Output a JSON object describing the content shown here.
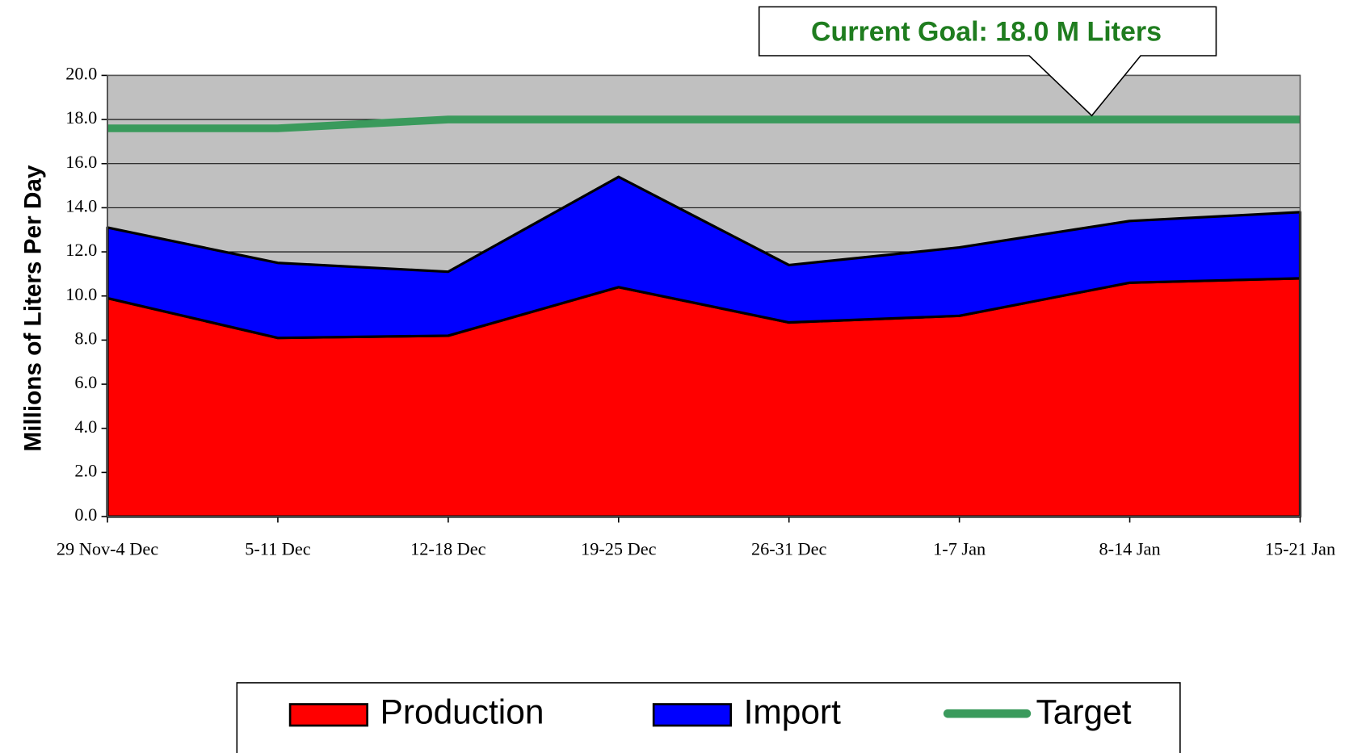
{
  "chart_data": {
    "type": "area",
    "stacked": true,
    "y_label": "Millions of Liters Per Day",
    "annotation": "Current Goal:  18.0 M Liters",
    "categories": [
      "29 Nov-4 Dec",
      "5-11 Dec",
      "12-18 Dec",
      "19-25 Dec",
      "26-31 Dec",
      "1-7 Jan",
      "8-14 Jan",
      "15-21 Jan"
    ],
    "series": [
      {
        "name": "Production",
        "color": "#ff0000",
        "values": [
          9.9,
          8.1,
          8.2,
          10.4,
          8.8,
          9.1,
          10.6,
          10.8
        ]
      },
      {
        "name": "Import",
        "color": "#0000ff",
        "values": [
          3.2,
          3.4,
          2.9,
          5.0,
          2.6,
          3.1,
          2.8,
          3.0
        ]
      },
      {
        "name": "Target",
        "color": "#3a9a5c",
        "type": "line",
        "values": [
          17.6,
          17.6,
          18.0,
          18.0,
          18.0,
          18.0,
          18.0,
          18.0
        ]
      }
    ],
    "ylim": [
      0,
      20
    ],
    "yticks": [
      {
        "value": 0,
        "label": "0.0"
      },
      {
        "value": 2,
        "label": "2.0"
      },
      {
        "value": 4,
        "label": "4.0"
      },
      {
        "value": 6,
        "label": "6.0"
      },
      {
        "value": 8,
        "label": "8.0"
      },
      {
        "value": 10,
        "label": "10.0"
      },
      {
        "value": 12,
        "label": "12.0"
      },
      {
        "value": 14,
        "label": "14.0"
      },
      {
        "value": 16,
        "label": "16.0"
      },
      {
        "value": 18,
        "label": "18.0"
      },
      {
        "value": 20,
        "label": "20.0"
      }
    ],
    "grid": true,
    "legend": "bottom"
  }
}
